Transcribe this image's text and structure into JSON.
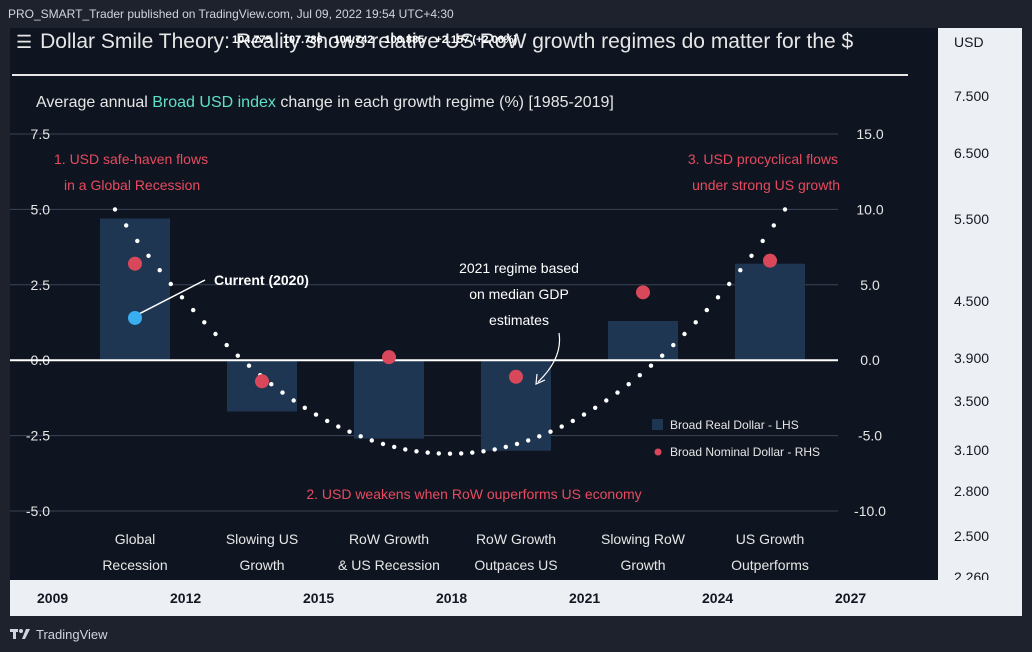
{
  "header": {
    "published_line": "PRO_SMART_Trader published on TradingView.com, Jul 09, 2022 19:54 UTC+4:30"
  },
  "title": {
    "menu_icon": "menu-icon",
    "text": "Dollar Smile Theory: Reality shows relative US RoW growth regimes do matter for the $"
  },
  "ohlc": [
    "104.775",
    "107.786",
    "104.742",
    "106.885",
    "+2.157 (+2.06%)"
  ],
  "subtitle": {
    "prefix": "Average annual ",
    "highlight": "Broad USD index",
    "suffix": " change in each growth regime (%) [1985-2019]"
  },
  "price_scale": {
    "currency": "USD",
    "labels": [
      "7.500",
      "6.500",
      "5.500",
      "4.500",
      "3.900",
      "3.500",
      "3.100",
      "2.800",
      "2.500",
      "2.260"
    ]
  },
  "time_scale": {
    "labels": [
      "2009",
      "2012",
      "2015",
      "2018",
      "2021",
      "2024",
      "2027"
    ]
  },
  "footer": {
    "brand": "TradingView",
    "logo_icon": "tradingview-logo-icon"
  },
  "colors": {
    "bar": "#1f3653",
    "nominal_dot": "#d9485a",
    "current_dot": "#39aef0",
    "annotation_red": "#e84a5f",
    "highlight": "#5ee0c8",
    "smile": "#ffffff"
  },
  "chart_data": {
    "type": "bar",
    "title": "Average annual Broad USD index change in each growth regime (%) [1985-2019]",
    "categories": [
      [
        "Global",
        "Recession"
      ],
      [
        "Slowing US",
        "Growth"
      ],
      [
        "RoW Growth",
        "& US Recession"
      ],
      [
        "RoW Growth",
        "Outpaces US"
      ],
      [
        "Slowing RoW",
        "Growth"
      ],
      [
        "US Growth",
        "Outperforms"
      ]
    ],
    "left_axis": {
      "ticks": [
        "7.5",
        "5.0",
        "2.5",
        "0.0",
        "-2.5",
        "-5.0"
      ],
      "range": [
        -5.0,
        7.5
      ]
    },
    "right_axis": {
      "ticks": [
        "15.0",
        "10.0",
        "5.0",
        "0.0",
        "-5.0",
        "-10.0"
      ],
      "range": [
        -10.0,
        15.0
      ]
    },
    "series": [
      {
        "name": "Broad Real Dollar - LHS",
        "axis": "left",
        "kind": "bar",
        "values": [
          4.7,
          -1.7,
          -2.6,
          -3.0,
          1.3,
          3.2
        ]
      },
      {
        "name": "Broad Nominal Dollar - RHS",
        "axis": "right",
        "kind": "dot",
        "values": [
          6.4,
          -1.4,
          0.2,
          -1.1,
          4.5,
          6.6
        ]
      }
    ],
    "current_point": {
      "label": "Current (2020)",
      "category_index": 0,
      "value": 1.4,
      "axis": "left"
    },
    "legend": [
      "Broad Real Dollar - LHS",
      "Broad Nominal Dollar - RHS"
    ],
    "annotations": {
      "note1": [
        "1. USD safe-haven flows",
        "in a Global Recession"
      ],
      "note2": "2. USD weakens when RoW ouperforms US economy",
      "note3": [
        "3. USD procyclical flows",
        "under strong US growth"
      ],
      "regime_note": [
        "2021 regime based",
        "on median GDP",
        "estimates"
      ]
    }
  }
}
